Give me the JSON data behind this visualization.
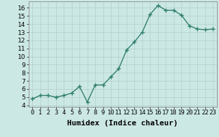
{
  "x": [
    0,
    1,
    2,
    3,
    4,
    5,
    6,
    7,
    8,
    9,
    10,
    11,
    12,
    13,
    14,
    15,
    16,
    17,
    18,
    19,
    20,
    21,
    22,
    23
  ],
  "y": [
    4.8,
    5.2,
    5.2,
    5.0,
    5.2,
    5.5,
    6.3,
    4.4,
    6.5,
    6.5,
    7.5,
    8.5,
    10.8,
    11.8,
    13.0,
    15.2,
    16.3,
    15.7,
    15.7,
    15.1,
    13.8,
    13.4,
    13.3,
    13.4
  ],
  "xlabel": "Humidex (Indice chaleur)",
  "line_color": "#2e7d6e",
  "marker": "+",
  "bg_color": "#cce8e4",
  "grid_color": "#b0cec9",
  "xlim": [
    -0.5,
    23.5
  ],
  "ylim": [
    3.8,
    16.8
  ],
  "yticks": [
    4,
    5,
    6,
    7,
    8,
    9,
    10,
    11,
    12,
    13,
    14,
    15,
    16
  ],
  "xtick_labels": [
    "0",
    "1",
    "2",
    "3",
    "4",
    "5",
    "6",
    "7",
    "8",
    "9",
    "10",
    "11",
    "12",
    "13",
    "14",
    "15",
    "16",
    "17",
    "18",
    "19",
    "20",
    "21",
    "22",
    "23"
  ],
  "tick_fontsize": 6.5,
  "xlabel_fontsize": 8,
  "line_width": 1.0,
  "marker_size": 4
}
